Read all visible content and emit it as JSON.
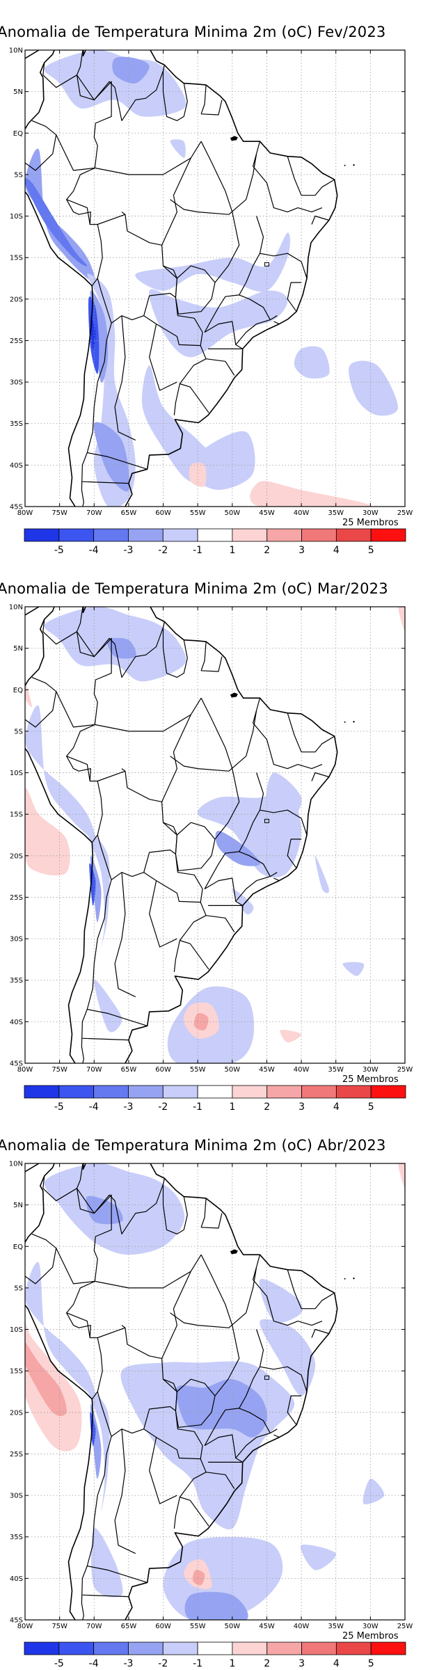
{
  "maps": [
    {
      "title": "Anomalia de Temperatura Minima 2m (oC) Fev/2023",
      "members": "25 Membros"
    },
    {
      "title": "Anomalia de Temperatura Minima 2m (oC) Mar/2023",
      "members": "25 Membros"
    },
    {
      "title": "Anomalia de Temperatura Minima 2m (oC) Abr/2023",
      "members": "25 Membros"
    }
  ],
  "lat_labels": [
    "10N",
    "5N",
    "EQ",
    "5S",
    "10S",
    "15S",
    "20S",
    "25S",
    "30S",
    "35S",
    "40S",
    "45S"
  ],
  "lon_labels": [
    "80W",
    "75W",
    "70W",
    "65W",
    "60W",
    "55W",
    "50W",
    "45W",
    "40W",
    "35W",
    "30W",
    "25W"
  ],
  "colorbar": {
    "colors": [
      "#1f36e8",
      "#3c55f0",
      "#6478f0",
      "#96a3f2",
      "#c8cef9",
      "#ffffff",
      "#fcd4d4",
      "#f6a6a6",
      "#f07878",
      "#ea4848",
      "#fc1010"
    ],
    "labels": [
      "-5",
      "-4",
      "-3",
      "-2",
      "-1",
      "1",
      "2",
      "3",
      "4",
      "5"
    ]
  }
}
